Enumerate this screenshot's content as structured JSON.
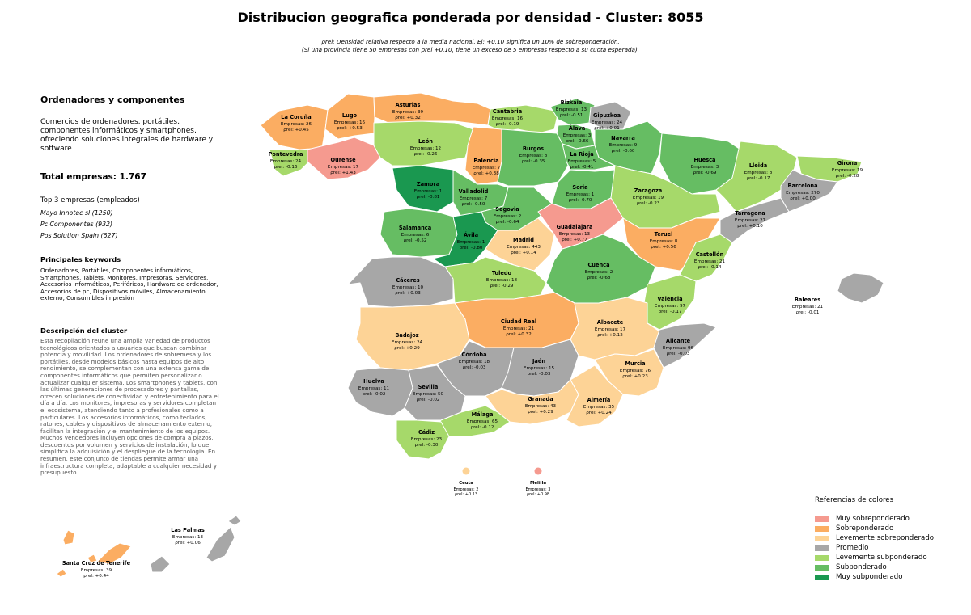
{
  "title": "Distribucion geografica ponderada por densidad - Cluster: 8055",
  "subtitle_line1": "ρrel: Densidad relativa respecto a la media nacional. Ej: +0.10 significa un 10% de sobreponderación.",
  "subtitle_line2": "(Si una provincia tiene 50 empresas con ρrel +0.10, tiene un exceso de 5 empresas respecto a su cuota esperada).",
  "colors": {
    "muy_sobre": "#f59a8f",
    "sobre": "#fbad62",
    "lev_sobre": "#fdd396",
    "promedio": "#a7a7a7",
    "lev_sub": "#a6d96a",
    "sub": "#66bd63",
    "muy_sub": "#1a9850"
  },
  "side": {
    "heading": "Ordenadores y componentes",
    "description": "Comercios de ordenadores, portátiles, componentes informáticos y smartphones, ofreciendo soluciones integrales de hardware y software",
    "total": "Total empresas: 1.767",
    "top3_heading": "Top 3 empresas (empleados)",
    "top3": [
      "Mayo Innotec sl (1250)",
      "Pc Componentes (932)",
      "Pos Solution Spain (627)"
    ],
    "keywords_heading": "Principales keywords",
    "keywords": "Ordenadores, Portátiles, Componentes informáticos, Smartphones, Tablets, Monitores, Impresoras, Servidores, Accesorios informáticos, Periféricos, Hardware de ordenador, Accesorios de pc, Dispositivos móviles, Almacenamiento externo, Consumibles impresión",
    "cluster_desc_heading": "Descripción del cluster",
    "cluster_desc": "Esta recopilación reúne una amplia variedad de productos tecnológicos orientados a usuarios que buscan combinar potencia y movilidad. Los ordenadores de sobremesa y los portátiles, desde modelos básicos hasta equipos de alto rendimiento, se complementan con una extensa gama de componentes informáticos que permiten personalizar o actualizar cualquier sistema. Los smartphones y tablets, con las últimas generaciones de procesadores y pantallas, ofrecen soluciones de conectividad y entretenimiento para el día a día. Los monitores, impresoras y servidores completan el ecosistema, atendiendo tanto a profesionales como a particulares. Los accesorios informáticos, como teclados, ratones, cables y dispositivos de almacenamiento externo, facilitan la integración y el mantenimiento de los equipos. Muchos vendedores incluyen opciones de compra a plazos, descuentos por volumen y servicios de instalación, lo que simplifica la adquisición y el despliegue de la tecnología. En resumen, este conjunto de tiendas permite armar una infraestructura completa, adaptable a cualquier necesidad y presupuesto."
  },
  "legend": {
    "title": "Referencias de colores",
    "items": [
      {
        "label": "Muy sobreponderado",
        "color": "#f59a8f"
      },
      {
        "label": "Sobreponderado",
        "color": "#fbad62"
      },
      {
        "label": "Levemente sobreponderado",
        "color": "#fdd396"
      },
      {
        "label": "Promedio",
        "color": "#a7a7a7"
      },
      {
        "label": "Levemente subponderado",
        "color": "#a6d96a"
      },
      {
        "label": "Subponderado",
        "color": "#66bd63"
      },
      {
        "label": "Muy subponderado",
        "color": "#1a9850"
      }
    ]
  },
  "provinces": [
    {
      "name": "La Coruña",
      "empresas": "Empresas: 26",
      "rho": "ρrel: +0.45",
      "cls": "sobre"
    },
    {
      "name": "Lugo",
      "empresas": "Empresas: 16",
      "rho": "ρrel: +0.53",
      "cls": "sobre"
    },
    {
      "name": "Asturias",
      "empresas": "Empresas: 39",
      "rho": "ρrel: +0.32",
      "cls": "sobre"
    },
    {
      "name": "Cantabria",
      "empresas": "Empresas: 16",
      "rho": "ρrel: -0.19",
      "cls": "lev_sub"
    },
    {
      "name": "Bizkaia",
      "empresas": "Empresas: 13",
      "rho": "ρrel: -0.51",
      "cls": "sub"
    },
    {
      "name": "Gipuzkoa",
      "empresas": "Empresas: 24",
      "rho": "ρrel: +0.01",
      "cls": "promedio"
    },
    {
      "name": "Álava",
      "empresas": "Empresas: 3",
      "rho": "ρrel: -0.66",
      "cls": "sub"
    },
    {
      "name": "Navarra",
      "empresas": "Empresas: 9",
      "rho": "ρrel: -0.60",
      "cls": "sub"
    },
    {
      "name": "Pontevedra",
      "empresas": "Empresas: 24",
      "rho": "ρrel: -0.16",
      "cls": "lev_sub"
    },
    {
      "name": "Ourense",
      "empresas": "Empresas: 17",
      "rho": "ρrel: +1.43",
      "cls": "muy_sobre"
    },
    {
      "name": "León",
      "empresas": "Empresas: 12",
      "rho": "ρrel: -0.26",
      "cls": "lev_sub"
    },
    {
      "name": "Palencia",
      "empresas": "Empresas: 7",
      "rho": "ρrel: +0.38",
      "cls": "sobre"
    },
    {
      "name": "Burgos",
      "empresas": "Empresas: 8",
      "rho": "ρrel: -0.35",
      "cls": "sub"
    },
    {
      "name": "La Rioja",
      "empresas": "Empresas: 5",
      "rho": "ρrel: -0.41",
      "cls": "sub"
    },
    {
      "name": "Huesca",
      "empresas": "Empresas: 3",
      "rho": "ρrel: -0.69",
      "cls": "sub"
    },
    {
      "name": "Lleida",
      "empresas": "Empresas: 8",
      "rho": "ρrel: -0.17",
      "cls": "lev_sub"
    },
    {
      "name": "Girona",
      "empresas": "Empresas: 19",
      "rho": "ρrel: -0.28",
      "cls": "lev_sub"
    },
    {
      "name": "Zamora",
      "empresas": "Empresas: 1",
      "rho": "ρrel: -0.81",
      "cls": "muy_sub"
    },
    {
      "name": "Valladolid",
      "empresas": "Empresas: 7",
      "rho": "ρrel: -0.50",
      "cls": "sub"
    },
    {
      "name": "Soria",
      "empresas": "Empresas: 1",
      "rho": "ρrel: -0.70",
      "cls": "sub"
    },
    {
      "name": "Zaragoza",
      "empresas": "Empresas: 19",
      "rho": "ρrel: -0.23",
      "cls": "lev_sub"
    },
    {
      "name": "Barcelona",
      "empresas": "Empresas: 270",
      "rho": "ρrel: +0.00",
      "cls": "promedio"
    },
    {
      "name": "Tarragona",
      "empresas": "Empresas: 27",
      "rho": "ρrel: +0.10",
      "cls": "promedio"
    },
    {
      "name": "Segovia",
      "empresas": "Empresas: 2",
      "rho": "ρrel: -0.64",
      "cls": "sub"
    },
    {
      "name": "Salamanca",
      "empresas": "Empresas: 6",
      "rho": "ρrel: -0.52",
      "cls": "sub"
    },
    {
      "name": "Ávila",
      "empresas": "Empresas: 1",
      "rho": "ρrel: -0.80",
      "cls": "muy_sub"
    },
    {
      "name": "Madrid",
      "empresas": "Empresas: 443",
      "rho": "ρrel: +0.14",
      "cls": "lev_sobre"
    },
    {
      "name": "Guadalajara",
      "empresas": "Empresas: 13",
      "rho": "ρrel: +0.77",
      "cls": "muy_sobre"
    },
    {
      "name": "Teruel",
      "empresas": "Empresas: 8",
      "rho": "ρrel: +0.56",
      "cls": "sobre"
    },
    {
      "name": "Castellón",
      "empresas": "Empresas: 21",
      "rho": "ρrel: -0.14",
      "cls": "lev_sub"
    },
    {
      "name": "Cáceres",
      "empresas": "Empresas: 10",
      "rho": "ρrel: +0.03",
      "cls": "promedio"
    },
    {
      "name": "Toledo",
      "empresas": "Empresas: 18",
      "rho": "ρrel: -0.29",
      "cls": "lev_sub"
    },
    {
      "name": "Cuenca",
      "empresas": "Empresas: 2",
      "rho": "ρrel: -0.68",
      "cls": "sub"
    },
    {
      "name": "Valencia",
      "empresas": "Empresas: 97",
      "rho": "ρrel: -0.17",
      "cls": "lev_sub"
    },
    {
      "name": "Baleares",
      "empresas": "Empresas: 21",
      "rho": "ρrel: -0.01",
      "cls": "promedio"
    },
    {
      "name": "Badajoz",
      "empresas": "Empresas: 24",
      "rho": "ρrel: +0.29",
      "cls": "lev_sobre"
    },
    {
      "name": "Ciudad Real",
      "empresas": "Empresas: 21",
      "rho": "ρrel: +0.32",
      "cls": "sobre"
    },
    {
      "name": "Albacete",
      "empresas": "Empresas: 17",
      "rho": "ρrel: +0.12",
      "cls": "lev_sobre"
    },
    {
      "name": "Alicante",
      "empresas": "Empresas: 96",
      "rho": "ρrel: -0.03",
      "cls": "promedio"
    },
    {
      "name": "Córdoba",
      "empresas": "Empresas: 18",
      "rho": "ρrel: -0.03",
      "cls": "promedio"
    },
    {
      "name": "Jaén",
      "empresas": "Empresas: 15",
      "rho": "ρrel: -0.03",
      "cls": "promedio"
    },
    {
      "name": "Murcia",
      "empresas": "Empresas: 76",
      "rho": "ρrel: +0.23",
      "cls": "lev_sobre"
    },
    {
      "name": "Huelva",
      "empresas": "Empresas: 11",
      "rho": "ρrel: -0.02",
      "cls": "promedio"
    },
    {
      "name": "Sevilla",
      "empresas": "Empresas: 50",
      "rho": "ρrel: -0.02",
      "cls": "promedio"
    },
    {
      "name": "Granada",
      "empresas": "Empresas: 43",
      "rho": "ρrel: +0.29",
      "cls": "lev_sobre"
    },
    {
      "name": "Almería",
      "empresas": "Empresas: 35",
      "rho": "ρrel: +0.24",
      "cls": "lev_sobre"
    },
    {
      "name": "Málaga",
      "empresas": "Empresas: 65",
      "rho": "ρrel: -0.12",
      "cls": "lev_sub"
    },
    {
      "name": "Cádiz",
      "empresas": "Empresas: 23",
      "rho": "ρrel: -0.30",
      "cls": "lev_sub"
    },
    {
      "name": "Ceuta",
      "empresas": "Empresas: 2",
      "rho": "ρrel: +0.13",
      "cls": "lev_sobre"
    },
    {
      "name": "Melilla",
      "empresas": "Empresas: 3",
      "rho": "ρrel: +0.98",
      "cls": "muy_sobre"
    },
    {
      "name": "Las Palmas",
      "empresas": "Empresas: 13",
      "rho": "ρrel: +0.06",
      "cls": "promedio"
    },
    {
      "name": "Santa Cruz de Tenerife",
      "empresas": "Empresas: 39",
      "rho": "ρrel: +0.44",
      "cls": "sobre"
    }
  ]
}
